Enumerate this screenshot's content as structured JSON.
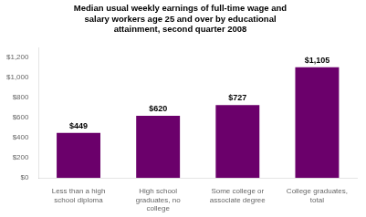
{
  "chart_data": {
    "type": "bar",
    "title": "Median usual weekly earnings of full-time wage and\nsalary workers age 25 and over by educational\nattainment, second quarter 2008",
    "categories": [
      "Less than a high\nschool diploma",
      "High school\ngraduates, no\ncollege",
      "Some college or\nassociate degree",
      "College graduates,\ntotal"
    ],
    "values": [
      449,
      620,
      727,
      1105
    ],
    "value_labels": [
      "$449",
      "$620",
      "$727",
      "$1,105"
    ],
    "data_labels": true,
    "color": "#6B006B",
    "ylim": [
      0,
      1300
    ],
    "yticks": [
      {
        "value": 0,
        "label": "$0"
      },
      {
        "value": 200,
        "label": "$200"
      },
      {
        "value": 400,
        "label": "$400"
      },
      {
        "value": 600,
        "label": "$600"
      },
      {
        "value": 800,
        "label": "$800"
      },
      {
        "value": 1000,
        "label": "$1,000"
      },
      {
        "value": 1200,
        "label": "$1,200"
      }
    ],
    "grid": false
  }
}
